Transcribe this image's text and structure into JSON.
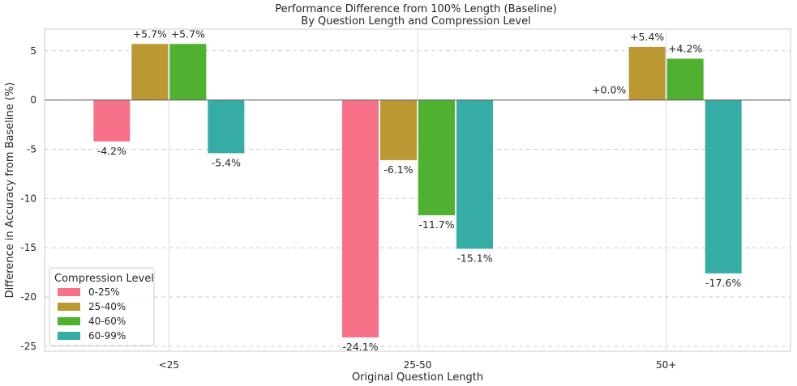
{
  "chart_data": {
    "type": "bar",
    "title": "Performance Difference from 100% Length (Baseline)",
    "subtitle": "By Question Length and Compression Level",
    "xlabel": "Original Question Length",
    "ylabel": "Difference in Accuracy from Baseline (%)",
    "categories": [
      "<25",
      "25-50",
      "50+"
    ],
    "ylim": [
      -25.5,
      7.2
    ],
    "yticks": [
      5,
      0,
      -5,
      -10,
      -15,
      -20,
      -25
    ],
    "grid": true,
    "legend": {
      "title": "Compression Level",
      "placement": "lower-left"
    },
    "series": [
      {
        "name": "0-25%",
        "color": "#f77189",
        "values": [
          -4.2,
          -24.1,
          0.0
        ],
        "labels": [
          "-4.2%",
          "-24.1%",
          "+0.0%"
        ]
      },
      {
        "name": "25-40%",
        "color": "#bb9832",
        "values": [
          5.7,
          -6.1,
          5.4
        ],
        "labels": [
          "+5.7%",
          "-6.1%",
          "+5.4%"
        ]
      },
      {
        "name": "40-60%",
        "color": "#50b131",
        "values": [
          5.7,
          -11.7,
          4.2
        ],
        "labels": [
          "+5.7%",
          "-11.7%",
          "+4.2%"
        ]
      },
      {
        "name": "60-99%",
        "color": "#36ada4",
        "values": [
          -5.4,
          -15.1,
          -17.6
        ],
        "labels": [
          "-5.4%",
          "-15.1%",
          "-17.6%"
        ]
      }
    ]
  }
}
